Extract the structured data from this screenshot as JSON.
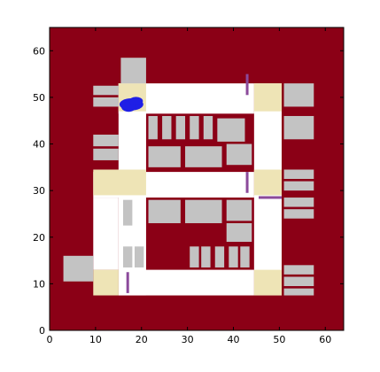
{
  "colors": {
    "background_field": "#8b0016",
    "road": "#ffffff",
    "intersection": "#eee4b6",
    "building": "#c3c3c3",
    "barrier": "#8b4a9b",
    "agent": "#1f1fe6",
    "axes": "#000000"
  },
  "chart_data": {
    "type": "map",
    "xlim": [
      0,
      64
    ],
    "ylim": [
      0,
      65
    ],
    "x_ticks": [
      0,
      10,
      20,
      30,
      40,
      50,
      60
    ],
    "y_ticks": [
      0,
      10,
      20,
      30,
      40,
      50,
      60
    ],
    "field": {
      "x": [
        0,
        64
      ],
      "y": [
        0,
        65
      ]
    },
    "roads": [
      {
        "x": [
          15,
          44.5
        ],
        "y": [
          46.5,
          53
        ]
      },
      {
        "x": [
          9.5,
          44.5
        ],
        "y": [
          28.5,
          34
        ]
      },
      {
        "x": [
          15,
          44.5
        ],
        "y": [
          7.5,
          13
        ]
      },
      {
        "x": [
          15,
          21
        ],
        "y": [
          7.5,
          53
        ]
      },
      {
        "x": [
          9.5,
          15
        ],
        "y": [
          13,
          28.5
        ]
      },
      {
        "x": [
          44.5,
          50.5
        ],
        "y": [
          7.5,
          53
        ]
      }
    ],
    "intersections": [
      {
        "x": [
          15,
          21
        ],
        "y": [
          47,
          53
        ]
      },
      {
        "x": [
          44.5,
          50.5
        ],
        "y": [
          47,
          53
        ]
      },
      {
        "x": [
          9.5,
          21
        ],
        "y": [
          29,
          34.5
        ]
      },
      {
        "x": [
          44.5,
          50.5
        ],
        "y": [
          29,
          34.5
        ]
      },
      {
        "x": [
          9.5,
          15
        ],
        "y": [
          7.5,
          13
        ]
      },
      {
        "x": [
          44.5,
          50.5
        ],
        "y": [
          7.5,
          13
        ]
      }
    ],
    "buildings": [
      {
        "x": [
          15.5,
          21
        ],
        "y": [
          53,
          58.5
        ]
      },
      {
        "x": [
          9.5,
          15
        ],
        "y": [
          50.5,
          52.5
        ]
      },
      {
        "x": [
          9.5,
          15
        ],
        "y": [
          48,
          50
        ]
      },
      {
        "x": [
          21.5,
          23.5
        ],
        "y": [
          41,
          46
        ]
      },
      {
        "x": [
          24.5,
          26.5
        ],
        "y": [
          41,
          46
        ]
      },
      {
        "x": [
          27.5,
          29.5
        ],
        "y": [
          41,
          46
        ]
      },
      {
        "x": [
          30.5,
          32.5
        ],
        "y": [
          41,
          46
        ]
      },
      {
        "x": [
          33.5,
          35.5
        ],
        "y": [
          41,
          46
        ]
      },
      {
        "x": [
          36.5,
          42.5
        ],
        "y": [
          40.5,
          45.5
        ]
      },
      {
        "x": [
          51,
          57.5
        ],
        "y": [
          48,
          53
        ]
      },
      {
        "x": [
          51,
          57.5
        ],
        "y": [
          41,
          46
        ]
      },
      {
        "x": [
          9.5,
          15
        ],
        "y": [
          39.5,
          42
        ]
      },
      {
        "x": [
          9.5,
          15
        ],
        "y": [
          36.5,
          39
        ]
      },
      {
        "x": [
          21.5,
          28.5
        ],
        "y": [
          35,
          39.5
        ]
      },
      {
        "x": [
          29.5,
          37.5
        ],
        "y": [
          35,
          39.5
        ]
      },
      {
        "x": [
          38.5,
          44
        ],
        "y": [
          35.5,
          40
        ]
      },
      {
        "x": [
          51,
          57.5
        ],
        "y": [
          32.5,
          34.5
        ]
      },
      {
        "x": [
          51,
          57.5
        ],
        "y": [
          30,
          32
        ]
      },
      {
        "x": [
          16,
          18
        ],
        "y": [
          22.5,
          28
        ]
      },
      {
        "x": [
          21.5,
          28.5
        ],
        "y": [
          23,
          28
        ]
      },
      {
        "x": [
          29.5,
          37.5
        ],
        "y": [
          23,
          28
        ]
      },
      {
        "x": [
          38.5,
          44
        ],
        "y": [
          23.5,
          28
        ]
      },
      {
        "x": [
          51,
          57.5
        ],
        "y": [
          26.5,
          28.5
        ]
      },
      {
        "x": [
          51,
          57.5
        ],
        "y": [
          24,
          26
        ]
      },
      {
        "x": [
          38.5,
          44
        ],
        "y": [
          19,
          23
        ]
      },
      {
        "x": [
          3,
          9.5
        ],
        "y": [
          10.5,
          16
        ]
      },
      {
        "x": [
          16,
          18
        ],
        "y": [
          13.5,
          18
        ]
      },
      {
        "x": [
          18.5,
          20.5
        ],
        "y": [
          13.5,
          18
        ]
      },
      {
        "x": [
          30.5,
          32.5
        ],
        "y": [
          13.5,
          18
        ]
      },
      {
        "x": [
          33,
          35
        ],
        "y": [
          13.5,
          18
        ]
      },
      {
        "x": [
          36,
          38
        ],
        "y": [
          13.5,
          18
        ]
      },
      {
        "x": [
          39,
          41
        ],
        "y": [
          13.5,
          18
        ]
      },
      {
        "x": [
          41.5,
          43.5
        ],
        "y": [
          13.5,
          18
        ]
      },
      {
        "x": [
          51,
          57.5
        ],
        "y": [
          12,
          14
        ]
      },
      {
        "x": [
          51,
          57.5
        ],
        "y": [
          9.5,
          11.5
        ]
      },
      {
        "x": [
          51,
          57.5
        ],
        "y": [
          7.5,
          9
        ]
      }
    ],
    "barriers": [
      {
        "x": [
          43,
          43
        ],
        "y": [
          50.5,
          55
        ]
      },
      {
        "x": [
          43,
          43
        ],
        "y": [
          29.5,
          34
        ]
      },
      {
        "x": [
          45.5,
          50.5
        ],
        "y": [
          28.5,
          28.5
        ]
      },
      {
        "x": [
          17,
          17
        ],
        "y": [
          8,
          12.5
        ]
      }
    ],
    "agents": [
      {
        "x": 17.8,
        "y": 48.5,
        "rx": 2.6,
        "ry": 1.3
      },
      {
        "x": 17.2,
        "y": 48.0,
        "rx": 1.6,
        "ry": 1.1
      },
      {
        "x": 18.8,
        "y": 49.2,
        "rx": 1.5,
        "ry": 0.9
      }
    ]
  }
}
